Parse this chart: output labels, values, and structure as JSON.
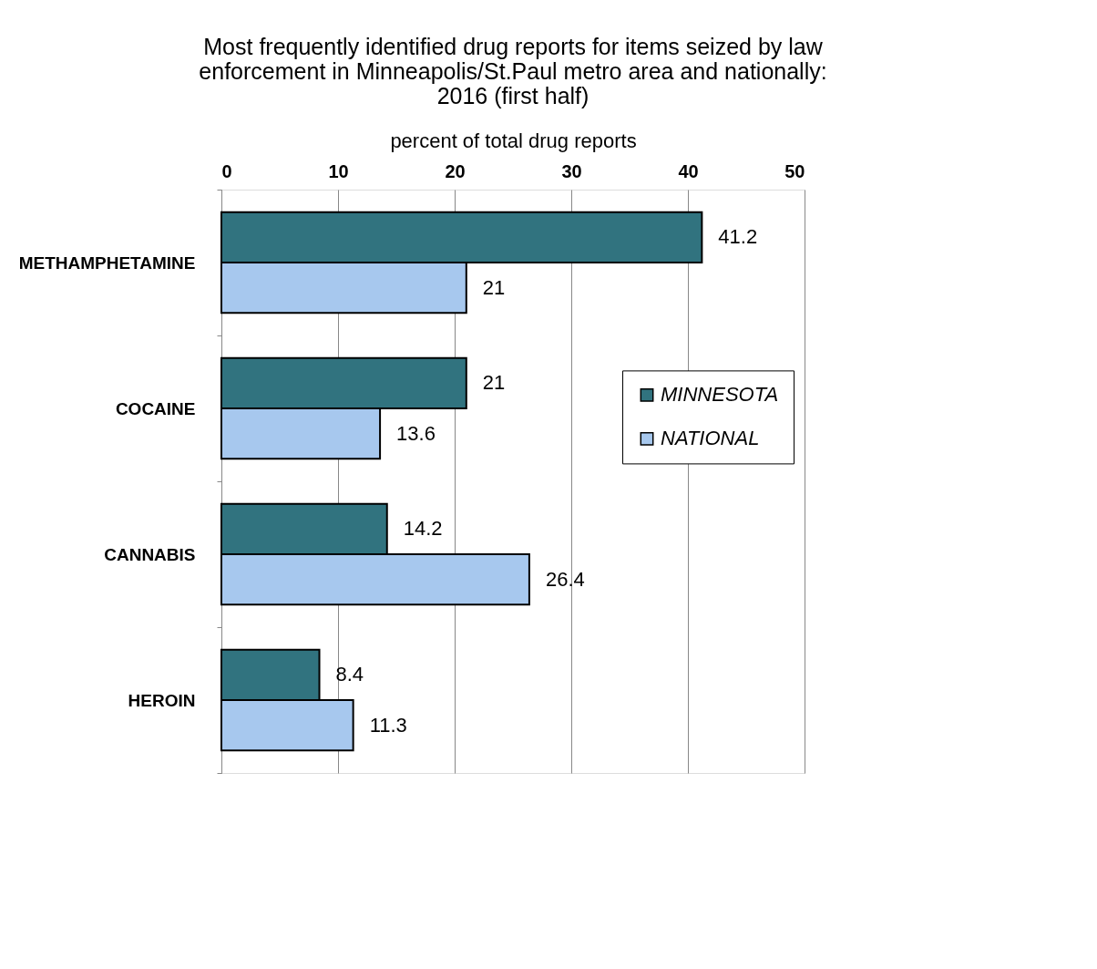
{
  "chart_data": {
    "type": "bar",
    "orientation": "horizontal",
    "title": "Most frequently identified drug reports for items seized by law\nenforcement in Minneapolis/St.Paul metro area and nationally:\n2016 (first half)",
    "xlabel": "percent of total drug reports",
    "categories": [
      "METHAMPHETAMINE",
      "COCAINE",
      "CANNABIS",
      "HEROIN"
    ],
    "series": [
      {
        "name": "MINNESOTA",
        "color": "#31737f",
        "values": [
          41.2,
          21,
          14.2,
          8.4
        ]
      },
      {
        "name": "NATIONAL",
        "color": "#a7c8ee",
        "values": [
          21,
          13.6,
          26.4,
          11.3
        ]
      }
    ],
    "xlim": [
      0,
      50
    ],
    "xticks": [
      0,
      10,
      20,
      30,
      40,
      50
    ],
    "grid": "x",
    "legend": "right",
    "data_labels": true
  }
}
